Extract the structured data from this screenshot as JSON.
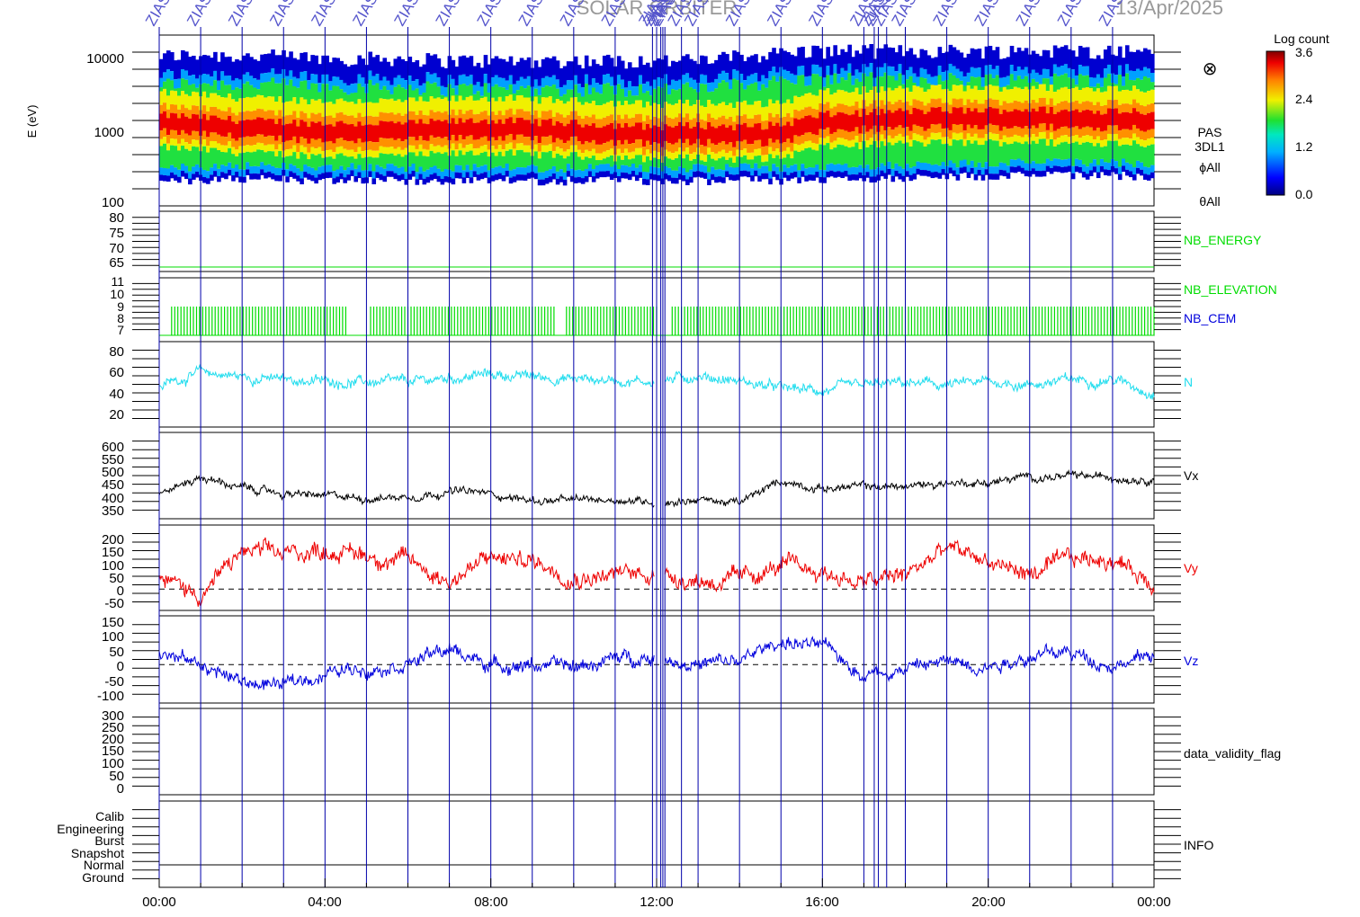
{
  "header": {
    "title": "SOLAR ORBITER",
    "date": "13/Apr/2025",
    "marker_label": "ZIAS"
  },
  "colorbar": {
    "title": "Log count",
    "ticks": [
      "3.6",
      "2.4",
      "1.2",
      "0.0"
    ]
  },
  "spectrogram_labels": {
    "direction_symbol": "⊗",
    "instrument": "PAS",
    "product": "3DL1",
    "phi": "ϕAll",
    "theta": "θAll"
  },
  "colors": {
    "frame": "#000000",
    "markers": "#0000aa",
    "green": "#00dd00",
    "cyan": "#22ddee",
    "black": "#000000",
    "red": "#ee0000",
    "blue": "#0000dd"
  },
  "chart_data": {
    "type": "line",
    "time_axis": {
      "start": "2025-04-13 00:00",
      "end": "2025-04-14 00:00",
      "tick_labels": [
        "00:00",
        "04:00",
        "08:00",
        "12:00",
        "16:00",
        "20:00",
        "00:00"
      ]
    },
    "marker_times_hours": [
      0.0,
      1.0,
      2.0,
      3.0,
      4.0,
      5.0,
      6.0,
      7.0,
      8.0,
      9.0,
      10.0,
      11.0,
      11.9,
      12.0,
      12.1,
      12.15,
      12.2,
      12.6,
      13.0,
      14.0,
      15.0,
      16.0,
      17.0,
      17.25,
      17.35,
      17.55,
      18.0,
      19.0,
      20.0,
      21.0,
      22.0,
      23.0
    ],
    "panels": [
      {
        "name": "energy_spectrogram",
        "type": "heatmap",
        "ylabel": "E (eV)",
        "yscale": "log",
        "ylim": [
          100,
          20000
        ],
        "tick_labels": [
          "10000",
          "1000",
          "100"
        ],
        "colorbar_range": [
          0.0,
          3.6
        ],
        "peak_energy_eV": [
          1300,
          1200,
          1100,
          1050,
          1000,
          1000,
          1000,
          1050,
          1100,
          1050,
          1000,
          950,
          900,
          950,
          900,
          950,
          1300,
          1400,
          1450,
          1500,
          1500,
          1550,
          1450,
          1500,
          1450
        ],
        "upper_edge_eV": [
          8000,
          8500,
          8000,
          8000,
          7500,
          7500,
          7500,
          7000,
          7000,
          7000,
          7000,
          7000,
          7000,
          7000,
          8000,
          9000,
          9500,
          9500,
          9500,
          9500,
          9500,
          9500,
          9500,
          9500,
          9500
        ],
        "lower_edge_eV": [
          260,
          250,
          260,
          260,
          260,
          260,
          250,
          250,
          250,
          250,
          250,
          250,
          250,
          250,
          250,
          250,
          260,
          270,
          280,
          290,
          290,
          290,
          290,
          290,
          290
        ]
      },
      {
        "name": "NB_ENERGY",
        "label": "NB_ENERGY",
        "color": "green",
        "tick_labels": [
          "80",
          "75",
          "70",
          "65"
        ],
        "ylim": [
          62,
          82
        ],
        "constant_value": 63.5
      },
      {
        "name": "NB_ELEVATION / NB_CEM",
        "labels": [
          "NB_ELEVATION",
          "NB_CEM"
        ],
        "label_colors": [
          "green",
          "blue"
        ],
        "tick_labels": [
          "11",
          "10",
          "9",
          "8",
          "7"
        ],
        "ylim": [
          7,
          11
        ],
        "oscillation_range": [
          7,
          9
        ],
        "gaps_hours": [
          [
            4.55,
            5.1
          ],
          [
            9.55,
            9.8
          ],
          [
            12.0,
            12.3
          ]
        ]
      },
      {
        "name": "N",
        "label": "N",
        "color": "cyan",
        "tick_labels": [
          "80",
          "60",
          "40",
          "20"
        ],
        "ylim": [
          10,
          88
        ],
        "hourly_values": [
          48,
          60,
          56,
          53,
          52,
          51,
          50,
          55,
          58,
          56,
          54,
          53,
          52,
          57,
          52,
          45,
          43,
          47,
          50,
          48,
          51,
          49,
          53,
          54,
          42
        ]
      },
      {
        "name": "Vx",
        "label": "Vx",
        "color": "black",
        "tick_labels": [
          "600",
          "550",
          "500",
          "450",
          "400",
          "350"
        ],
        "ylim": [
          330,
          640
        ],
        "hourly_values": [
          420,
          480,
          440,
          420,
          410,
          405,
          410,
          430,
          420,
          395,
          395,
          400,
          390,
          400,
          385,
          465,
          440,
          445,
          445,
          460,
          460,
          480,
          480,
          480,
          475
        ]
      },
      {
        "name": "Vy",
        "label": "Vy",
        "color": "red",
        "tick_labels": [
          "200",
          "150",
          "100",
          "50",
          "0",
          "-50"
        ],
        "ylim": [
          -75,
          225
        ],
        "zero_line": true,
        "hourly_values": [
          40,
          -20,
          130,
          120,
          140,
          120,
          100,
          30,
          110,
          100,
          50,
          50,
          60,
          30,
          30,
          80,
          60,
          20,
          50,
          140,
          100,
          50,
          100,
          110,
          20
        ]
      },
      {
        "name": "Vz",
        "label": "Vz",
        "color": "blue",
        "tick_labels": [
          "150",
          "100",
          "50",
          "0",
          "-50",
          "-100"
        ],
        "ylim": [
          -130,
          165
        ],
        "zero_line": true,
        "hourly_values": [
          40,
          0,
          -60,
          -70,
          -30,
          -10,
          10,
          50,
          0,
          0,
          -10,
          20,
          30,
          0,
          10,
          80,
          60,
          -30,
          -10,
          10,
          0,
          30,
          40,
          0,
          30
        ]
      },
      {
        "name": "data_validity_flag",
        "label": "data_validity_flag",
        "tick_labels": [
          "300",
          "250",
          "200",
          "150",
          "100",
          "50",
          "0"
        ],
        "ylim": [
          -20,
          310
        ]
      },
      {
        "name": "INFO",
        "label": "INFO",
        "tick_labels": [
          "Calib",
          "Engineering",
          "Burst",
          "Snapshot",
          "Normal",
          "Ground"
        ],
        "active_mode": "Normal"
      }
    ]
  }
}
